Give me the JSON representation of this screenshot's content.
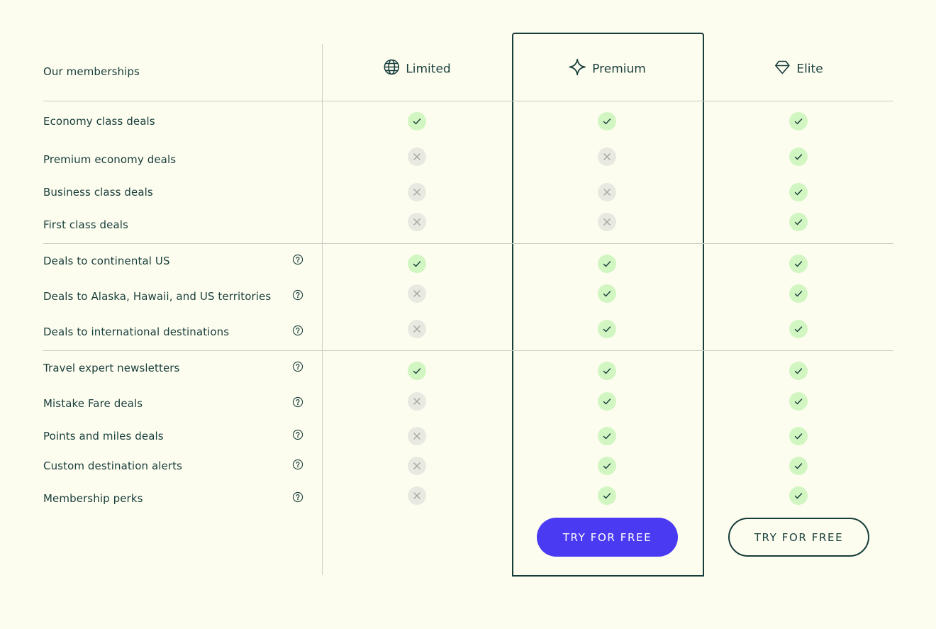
{
  "header": {
    "label": "Our memberships"
  },
  "plans": [
    {
      "name": "Limited"
    },
    {
      "name": "Premium",
      "button": "TRY FOR FREE"
    },
    {
      "name": "Elite",
      "button": "TRY FOR FREE"
    }
  ],
  "groups": [
    {
      "features": [
        {
          "label": "Economy class deals",
          "help": false,
          "included": [
            true,
            true,
            true
          ]
        },
        {
          "label": "Premium economy deals",
          "help": false,
          "included": [
            false,
            false,
            true
          ]
        },
        {
          "label": "Business class deals",
          "help": false,
          "included": [
            false,
            false,
            true
          ]
        },
        {
          "label": "First class deals",
          "help": false,
          "included": [
            false,
            false,
            true
          ]
        }
      ]
    },
    {
      "features": [
        {
          "label": "Deals to continental US",
          "help": true,
          "included": [
            true,
            true,
            true
          ]
        },
        {
          "label": "Deals to Alaska, Hawaii, and US territories",
          "help": true,
          "included": [
            false,
            true,
            true
          ]
        },
        {
          "label": "Deals to international destinations",
          "help": true,
          "included": [
            false,
            true,
            true
          ]
        }
      ]
    },
    {
      "features": [
        {
          "label": "Travel expert newsletters",
          "help": true,
          "included": [
            true,
            true,
            true
          ]
        },
        {
          "label": "Mistake Fare deals",
          "help": true,
          "included": [
            false,
            true,
            true
          ]
        },
        {
          "label": "Points and miles deals",
          "help": true,
          "included": [
            false,
            true,
            true
          ]
        },
        {
          "label": "Custom destination alerts",
          "help": true,
          "included": [
            false,
            true,
            true
          ]
        },
        {
          "label": "Membership perks",
          "help": true,
          "included": [
            false,
            true,
            true
          ]
        }
      ]
    }
  ]
}
